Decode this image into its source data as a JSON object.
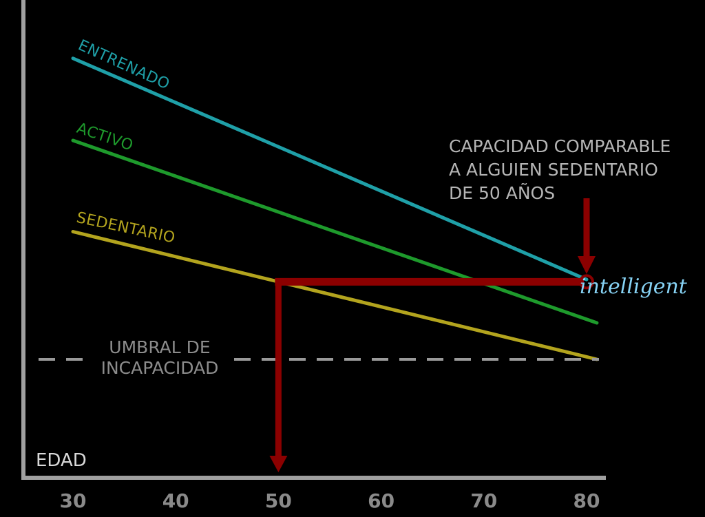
{
  "chart_data": {
    "type": "line",
    "xlabel": "EDAD",
    "ylabel": "",
    "title": "",
    "x_ticks": [
      30,
      40,
      50,
      60,
      70,
      80
    ],
    "xlim": [
      25,
      83
    ],
    "ylim": [
      0,
      100
    ],
    "grid": false,
    "series": [
      {
        "name": "ENTRENADO",
        "color": "#1fa0a8",
        "points": [
          [
            30,
            90
          ],
          [
            80,
            41.5
          ]
        ]
      },
      {
        "name": "ACTIVO",
        "color": "#1e9a2c",
        "points": [
          [
            30,
            72
          ],
          [
            81,
            32
          ]
        ]
      },
      {
        "name": "SEDENTARIO",
        "color": "#b3a41e",
        "points": [
          [
            30,
            52
          ],
          [
            81,
            24
          ]
        ]
      }
    ],
    "threshold": {
      "label_line1": "UMBRAL DE",
      "label_line2": "INCAPACIDAD",
      "value": 24,
      "color": "#9a9a9a"
    },
    "annotation": {
      "line1": "CAPACIDAD COMPARABLE",
      "line2": "A ALGUIEN SEDENTARIO",
      "line3": "DE 50 AÑOS",
      "marker_x": 80,
      "level_y": 41,
      "from_x": 50,
      "color": "#8b0000"
    },
    "axis_color": "#a0a0a0"
  },
  "watermark": {
    "text": "intelligent",
    "color": "#87d3f5"
  }
}
